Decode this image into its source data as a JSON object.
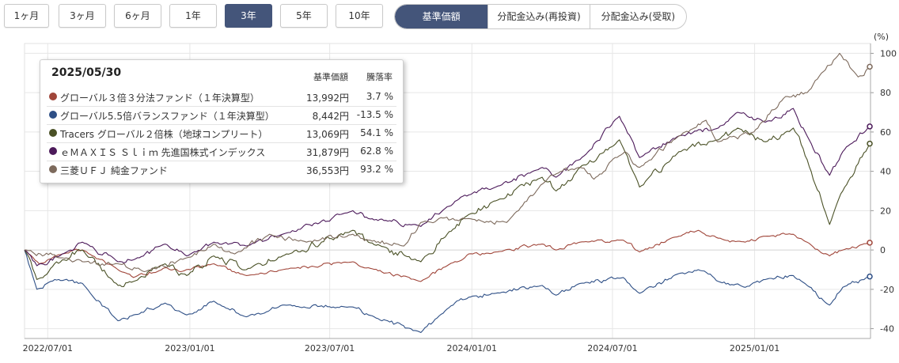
{
  "period_buttons": [
    {
      "label": "1ヶ月",
      "active": false
    },
    {
      "label": "3ヶ月",
      "active": false
    },
    {
      "label": "6ヶ月",
      "active": false
    },
    {
      "label": "1年",
      "active": false
    },
    {
      "label": "3年",
      "active": true
    },
    {
      "label": "5年",
      "active": false
    },
    {
      "label": "10年",
      "active": false
    }
  ],
  "mode_buttons": [
    {
      "label": "基準価額",
      "active": true
    },
    {
      "label": "分配金込み(再投資)",
      "active": false
    },
    {
      "label": "分配金込み(受取)",
      "active": false
    }
  ],
  "tooltip": {
    "date": "2025/05/30",
    "col_price": "基準価額",
    "col_pct": "騰落率",
    "rows": [
      {
        "name": "グローバル３倍３分法ファンド（１年決算型）",
        "price": "13,992円",
        "pct": "3.7 %"
      },
      {
        "name": "グローバル5.5倍バランスファンド（１年決算型）",
        "price": "8,442円",
        "pct": "-13.5 %"
      },
      {
        "name": "Tracers グローバル２倍株（地球コンプリート）",
        "price": "13,069円",
        "pct": "54.1 %"
      },
      {
        "name": "ｅＭＡＸＩＳ Ｓｌｉｍ 先進国株式インデックス",
        "price": "31,879円",
        "pct": "62.8 %"
      },
      {
        "name": "三菱ＵＦＪ 純金ファンド",
        "price": "36,553円",
        "pct": "93.2 %"
      }
    ]
  },
  "chart_data": {
    "type": "line",
    "y_unit_label": "(%)",
    "ylim": [
      -45,
      105
    ],
    "y_ticks": [
      100,
      80,
      60,
      40,
      20,
      0,
      -20,
      -40
    ],
    "y_tick_labels": [
      "100",
      "80",
      "60",
      "40",
      "20",
      "0",
      "-20",
      "-40"
    ],
    "x_tick_labels": [
      "2022/07/01",
      "2023/01/01",
      "2023/07/01",
      "2024/01/01",
      "2024/07/01",
      "2025/01/01"
    ],
    "x_ticks": [
      "2022-07-01",
      "2023-01-01",
      "2023-07-01",
      "2024-01-01",
      "2024-07-01",
      "2025-01-01"
    ],
    "x_range": [
      "2022-06-01",
      "2025-05-31"
    ],
    "grid": true,
    "series": [
      {
        "name": "グローバル３倍３分法ファンド（１年決算型）",
        "color": "#a0463a",
        "points": [
          [
            "2022-06-01",
            0
          ],
          [
            "2022-06-20",
            -7
          ],
          [
            "2022-07-20",
            -2
          ],
          [
            "2022-08-15",
            0
          ],
          [
            "2022-09-30",
            -10
          ],
          [
            "2022-10-20",
            -14
          ],
          [
            "2022-11-30",
            -9
          ],
          [
            "2022-12-20",
            -11
          ],
          [
            "2023-02-01",
            -7
          ],
          [
            "2023-03-15",
            -13
          ],
          [
            "2023-05-01",
            -10
          ],
          [
            "2023-07-31",
            -6
          ],
          [
            "2023-08-20",
            -9
          ],
          [
            "2023-10-27",
            -16
          ],
          [
            "2023-11-30",
            -8
          ],
          [
            "2023-12-28",
            -2
          ],
          [
            "2024-02-01",
            -1
          ],
          [
            "2024-04-01",
            3
          ],
          [
            "2024-04-19",
            0
          ],
          [
            "2024-05-20",
            4
          ],
          [
            "2024-07-15",
            5
          ],
          [
            "2024-08-05",
            -1
          ],
          [
            "2024-09-25",
            7
          ],
          [
            "2024-10-20",
            10
          ],
          [
            "2024-11-15",
            6
          ],
          [
            "2024-12-20",
            4
          ],
          [
            "2025-01-15",
            7
          ],
          [
            "2025-02-20",
            8
          ],
          [
            "2025-03-10",
            4
          ],
          [
            "2025-04-08",
            -3
          ],
          [
            "2025-04-25",
            0
          ],
          [
            "2025-05-30",
            3.7
          ]
        ]
      },
      {
        "name": "グローバル5.5倍バランスファンド（１年決算型）",
        "color": "#2e4f86",
        "points": [
          [
            "2022-06-01",
            0
          ],
          [
            "2022-06-17",
            -20
          ],
          [
            "2022-07-10",
            -15
          ],
          [
            "2022-08-15",
            -17
          ],
          [
            "2022-09-30",
            -36
          ],
          [
            "2022-10-20",
            -33
          ],
          [
            "2022-11-30",
            -27
          ],
          [
            "2022-12-28",
            -33
          ],
          [
            "2023-02-01",
            -26
          ],
          [
            "2023-03-15",
            -34
          ],
          [
            "2023-05-01",
            -28
          ],
          [
            "2023-07-31",
            -29
          ],
          [
            "2023-08-20",
            -33
          ],
          [
            "2023-10-27",
            -42
          ],
          [
            "2023-11-30",
            -30
          ],
          [
            "2023-12-28",
            -24
          ],
          [
            "2024-02-01",
            -22
          ],
          [
            "2024-04-01",
            -18
          ],
          [
            "2024-04-19",
            -23
          ],
          [
            "2024-05-20",
            -17
          ],
          [
            "2024-07-15",
            -14
          ],
          [
            "2024-08-05",
            -22
          ],
          [
            "2024-09-25",
            -12
          ],
          [
            "2024-10-20",
            -10
          ],
          [
            "2024-11-15",
            -16
          ],
          [
            "2024-12-20",
            -19
          ],
          [
            "2025-01-15",
            -15
          ],
          [
            "2025-02-20",
            -13
          ],
          [
            "2025-03-10",
            -18
          ],
          [
            "2025-04-08",
            -28
          ],
          [
            "2025-04-25",
            -19
          ],
          [
            "2025-05-30",
            -13.5
          ]
        ]
      },
      {
        "name": "Tracers グローバル２倍株（地球コンプリート）",
        "color": "#4a5126",
        "points": [
          [
            "2022-06-01",
            0
          ],
          [
            "2022-06-17",
            -15
          ],
          [
            "2022-07-20",
            -5
          ],
          [
            "2022-08-15",
            0
          ],
          [
            "2022-09-30",
            -18
          ],
          [
            "2022-10-20",
            -16
          ],
          [
            "2022-11-30",
            -7
          ],
          [
            "2022-12-28",
            -13
          ],
          [
            "2023-02-01",
            -3
          ],
          [
            "2023-03-15",
            -10
          ],
          [
            "2023-05-01",
            -3
          ],
          [
            "2023-07-31",
            10
          ],
          [
            "2023-08-20",
            4
          ],
          [
            "2023-10-27",
            -6
          ],
          [
            "2023-11-30",
            8
          ],
          [
            "2023-12-28",
            18
          ],
          [
            "2024-02-01",
            25
          ],
          [
            "2024-04-01",
            37
          ],
          [
            "2024-04-19",
            30
          ],
          [
            "2024-05-20",
            42
          ],
          [
            "2024-07-10",
            56
          ],
          [
            "2024-08-05",
            32
          ],
          [
            "2024-09-25",
            50
          ],
          [
            "2024-11-15",
            56
          ],
          [
            "2024-12-10",
            62
          ],
          [
            "2025-01-15",
            55
          ],
          [
            "2025-02-20",
            62
          ],
          [
            "2025-03-10",
            46
          ],
          [
            "2025-04-08",
            13
          ],
          [
            "2025-04-25",
            30
          ],
          [
            "2025-05-30",
            54.1
          ]
        ]
      },
      {
        "name": "ｅＭＡＸＩＳ Ｓｌｉｍ 先進国株式インデックス",
        "color": "#4c1a5a",
        "points": [
          [
            "2022-06-01",
            0
          ],
          [
            "2022-06-17",
            -8
          ],
          [
            "2022-07-20",
            -2
          ],
          [
            "2022-08-15",
            4
          ],
          [
            "2022-09-30",
            -6
          ],
          [
            "2022-10-20",
            -5
          ],
          [
            "2022-11-30",
            3
          ],
          [
            "2022-12-28",
            -3
          ],
          [
            "2023-02-01",
            4
          ],
          [
            "2023-03-15",
            2
          ],
          [
            "2023-05-01",
            8
          ],
          [
            "2023-07-31",
            20
          ],
          [
            "2023-08-20",
            16
          ],
          [
            "2023-10-27",
            12
          ],
          [
            "2023-11-30",
            22
          ],
          [
            "2023-12-28",
            28
          ],
          [
            "2024-02-01",
            32
          ],
          [
            "2024-04-01",
            42
          ],
          [
            "2024-04-19",
            37
          ],
          [
            "2024-05-20",
            46
          ],
          [
            "2024-07-10",
            68
          ],
          [
            "2024-08-05",
            47
          ],
          [
            "2024-09-25",
            58
          ],
          [
            "2024-11-15",
            62
          ],
          [
            "2024-12-10",
            70
          ],
          [
            "2025-01-15",
            65
          ],
          [
            "2025-02-20",
            72
          ],
          [
            "2025-03-10",
            58
          ],
          [
            "2025-04-08",
            38
          ],
          [
            "2025-04-25",
            50
          ],
          [
            "2025-05-30",
            62.8
          ]
        ]
      },
      {
        "name": "三菱ＵＦＪ 純金ファンド",
        "color": "#7d6a5c",
        "points": [
          [
            "2022-06-01",
            0
          ],
          [
            "2022-07-20",
            -4
          ],
          [
            "2022-08-15",
            -6
          ],
          [
            "2022-09-30",
            -7
          ],
          [
            "2022-11-03",
            -11
          ],
          [
            "2022-12-28",
            -4
          ],
          [
            "2023-02-01",
            3
          ],
          [
            "2023-02-28",
            -2
          ],
          [
            "2023-04-14",
            8
          ],
          [
            "2023-06-01",
            4
          ],
          [
            "2023-07-31",
            8
          ],
          [
            "2023-08-20",
            5
          ],
          [
            "2023-10-05",
            2
          ],
          [
            "2023-10-27",
            14
          ],
          [
            "2023-12-28",
            16
          ],
          [
            "2024-02-15",
            14
          ],
          [
            "2024-04-12",
            38
          ],
          [
            "2024-05-20",
            42
          ],
          [
            "2024-06-07",
            36
          ],
          [
            "2024-07-17",
            50
          ],
          [
            "2024-08-05",
            42
          ],
          [
            "2024-09-25",
            58
          ],
          [
            "2024-10-30",
            66
          ],
          [
            "2024-11-14",
            55
          ],
          [
            "2024-12-31",
            60
          ],
          [
            "2025-02-10",
            78
          ],
          [
            "2025-03-10",
            80
          ],
          [
            "2025-04-21",
            100
          ],
          [
            "2025-05-15",
            88
          ],
          [
            "2025-05-30",
            93.2
          ]
        ]
      }
    ]
  }
}
